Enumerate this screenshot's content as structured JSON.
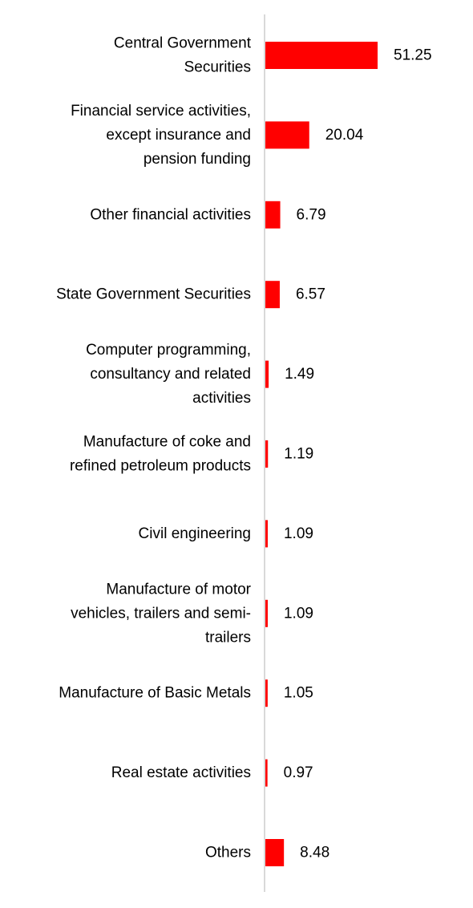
{
  "chart_data": {
    "type": "bar",
    "orientation": "horizontal",
    "categories": [
      "Central Government Securities",
      "Financial service activities, except insurance and pension funding",
      "Other financial activities",
      "State Government Securities",
      "Computer programming, consultancy and related activities",
      "Manufacture of coke and refined petroleum products",
      "Civil engineering",
      "Manufacture of motor vehicles, trailers and semi-trailers",
      "Manufacture of Basic Metals",
      "Real estate activities",
      "Others"
    ],
    "category_lines": [
      [
        "Central Government",
        "Securities"
      ],
      [
        "Financial service activities,",
        "except insurance and",
        "pension funding"
      ],
      [
        "Other financial activities"
      ],
      [
        "State Government Securities"
      ],
      [
        "Computer programming,",
        "consultancy and related",
        "activities"
      ],
      [
        "Manufacture of coke and",
        "refined petroleum products"
      ],
      [
        "Civil engineering"
      ],
      [
        "Manufacture of motor",
        "vehicles, trailers and semi-",
        "trailers"
      ],
      [
        "Manufacture of Basic Metals"
      ],
      [
        "Real estate activities"
      ],
      [
        "Others"
      ]
    ],
    "values": [
      51.25,
      20.04,
      6.79,
      6.57,
      1.49,
      1.19,
      1.09,
      1.09,
      1.05,
      0.97,
      8.48
    ],
    "value_labels": [
      "51.25",
      "20.04",
      "6.79",
      "6.57",
      "1.49",
      "1.19",
      "1.09",
      "1.09",
      "1.05",
      "0.97",
      "8.48"
    ],
    "xlim": [
      0,
      51.25
    ],
    "title": "",
    "xlabel": "",
    "ylabel": "",
    "grid": false,
    "legend": "none",
    "colors": {
      "bar": "#ff0000",
      "axis": "#d9d9d9",
      "text": "#000000"
    }
  }
}
